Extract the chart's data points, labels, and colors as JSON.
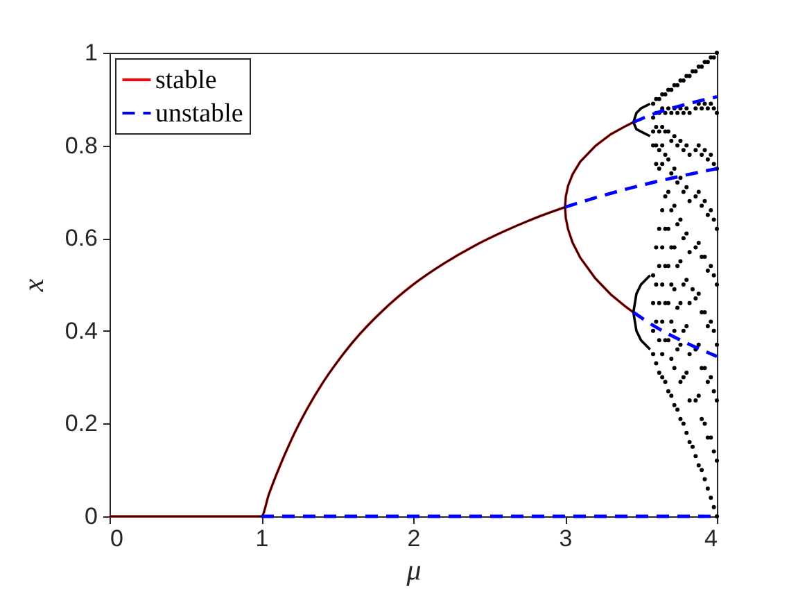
{
  "chart_data": {
    "type": "line",
    "xlabel": "μ",
    "ylabel": "x",
    "xlim": [
      0,
      4
    ],
    "ylim": [
      0,
      1
    ],
    "xticks": [
      0,
      1,
      2,
      3,
      4
    ],
    "yticks": [
      0,
      0.2,
      0.4,
      0.6,
      0.8,
      1
    ],
    "legend": "top left",
    "series": [
      {
        "name": "stable",
        "color": "#ff0000",
        "line_style": "solid",
        "x": [
          0,
          1,
          1.05,
          1.1,
          1.2,
          1.3,
          1.4,
          1.5,
          1.6,
          1.8,
          2,
          2.2,
          2.4,
          2.6,
          2.8,
          3
        ],
        "values": [
          0,
          0,
          0.048,
          0.091,
          0.167,
          0.231,
          0.286,
          0.333,
          0.375,
          0.444,
          0.5,
          0.545,
          0.583,
          0.615,
          0.643,
          0.667
        ]
      },
      {
        "color": "#ff0000",
        "line_style": "solid",
        "x": [
          3.45,
          3.4,
          3.3,
          3.2,
          3.1,
          3.05,
          3.02,
          3.005,
          3,
          3.005,
          3.02,
          3.05,
          3.1,
          3.2,
          3.3,
          3.4,
          3.45
        ],
        "values": [
          0.85,
          0.842,
          0.824,
          0.799,
          0.765,
          0.738,
          0.713,
          0.69,
          0.667,
          0.643,
          0.619,
          0.59,
          0.558,
          0.513,
          0.479,
          0.452,
          0.44
        ]
      },
      {
        "color": "#000000",
        "line_style": "solid",
        "x": [
          0,
          1,
          1.05,
          1.1,
          1.2,
          1.3,
          1.4,
          1.5,
          1.6,
          1.8,
          2,
          2.2,
          2.4,
          2.6,
          2.8,
          3
        ],
        "values": [
          0,
          0,
          0.048,
          0.091,
          0.167,
          0.231,
          0.286,
          0.333,
          0.375,
          0.444,
          0.5,
          0.545,
          0.583,
          0.615,
          0.643,
          0.667
        ]
      },
      {
        "color": "#000000",
        "line_style": "solid",
        "x": [
          3.45,
          3.4,
          3.3,
          3.2,
          3.1,
          3.05,
          3.02,
          3.005,
          3,
          3.005,
          3.02,
          3.05,
          3.1,
          3.2,
          3.3,
          3.4,
          3.45
        ],
        "values": [
          0.85,
          0.842,
          0.824,
          0.799,
          0.765,
          0.738,
          0.713,
          0.69,
          0.667,
          0.643,
          0.619,
          0.59,
          0.558,
          0.513,
          0.479,
          0.452,
          0.44
        ]
      },
      {
        "color": "#000000",
        "line_style": "solid",
        "x": [
          3.56,
          3.5,
          3.47,
          3.45,
          3.47,
          3.5,
          3.56
        ],
        "values": [
          0.89,
          0.88,
          0.87,
          0.85,
          0.835,
          0.83,
          0.82
        ]
      },
      {
        "color": "#000000",
        "line_style": "solid",
        "x": [
          3.56,
          3.5,
          3.47,
          3.45,
          3.47,
          3.5,
          3.56
        ],
        "values": [
          0.52,
          0.5,
          0.48,
          0.44,
          0.4,
          0.38,
          0.36
        ]
      },
      {
        "type": "scatter",
        "color": "#000000",
        "marker": "circle",
        "x": [
          3.58,
          3.58,
          3.58,
          3.58,
          3.58,
          3.58,
          3.58,
          3.58,
          3.6,
          3.6,
          3.6,
          3.6,
          3.6,
          3.6,
          3.6,
          3.6,
          3.6,
          3.62,
          3.62,
          3.62,
          3.62,
          3.62,
          3.62,
          3.62,
          3.62,
          3.62,
          3.62,
          3.64,
          3.64,
          3.64,
          3.64,
          3.64,
          3.64,
          3.64,
          3.64,
          3.64,
          3.64,
          3.64,
          3.66,
          3.66,
          3.66,
          3.66,
          3.66,
          3.66,
          3.66,
          3.66,
          3.66,
          3.66,
          3.68,
          3.68,
          3.68,
          3.68,
          3.68,
          3.68,
          3.68,
          3.68,
          3.68,
          3.68,
          3.7,
          3.7,
          3.7,
          3.7,
          3.7,
          3.7,
          3.7,
          3.7,
          3.7,
          3.7,
          3.72,
          3.72,
          3.72,
          3.72,
          3.72,
          3.72,
          3.72,
          3.72,
          3.72,
          3.72,
          3.74,
          3.74,
          3.74,
          3.74,
          3.74,
          3.74,
          3.74,
          3.74,
          3.74,
          3.76,
          3.76,
          3.76,
          3.76,
          3.76,
          3.76,
          3.76,
          3.76,
          3.76,
          3.76
        ],
        "values": [
          0.89,
          0.86,
          0.83,
          0.8,
          0.52,
          0.46,
          0.4,
          0.35,
          0.9,
          0.87,
          0.84,
          0.8,
          0.76,
          0.58,
          0.5,
          0.42,
          0.33,
          0.9,
          0.87,
          0.83,
          0.79,
          0.75,
          0.62,
          0.54,
          0.46,
          0.38,
          0.31,
          0.91,
          0.88,
          0.84,
          0.8,
          0.76,
          0.66,
          0.58,
          0.5,
          0.42,
          0.35,
          0.3,
          0.91,
          0.87,
          0.83,
          0.78,
          0.69,
          0.62,
          0.54,
          0.46,
          0.38,
          0.29,
          0.92,
          0.88,
          0.83,
          0.77,
          0.7,
          0.62,
          0.54,
          0.46,
          0.38,
          0.27,
          0.92,
          0.87,
          0.81,
          0.74,
          0.66,
          0.58,
          0.5,
          0.42,
          0.34,
          0.26,
          0.93,
          0.88,
          0.82,
          0.75,
          0.67,
          0.58,
          0.49,
          0.4,
          0.32,
          0.24,
          0.93,
          0.87,
          0.8,
          0.72,
          0.63,
          0.54,
          0.45,
          0.36,
          0.23,
          0.94,
          0.88,
          0.81,
          0.73,
          0.64,
          0.55,
          0.46,
          0.37,
          0.29,
          0.21
        ]
      },
      {
        "type": "scatter",
        "color": "#000000",
        "marker": "circle",
        "x": [
          3.78,
          3.78,
          3.78,
          3.78,
          3.78,
          3.78,
          3.78,
          3.78,
          3.78,
          3.8,
          3.8,
          3.8,
          3.8,
          3.8,
          3.8,
          3.8,
          3.8,
          3.8,
          3.82,
          3.82,
          3.82,
          3.82,
          3.82,
          3.82,
          3.82,
          3.82,
          3.82,
          3.84,
          3.84,
          3.84,
          3.86,
          3.86,
          3.86,
          3.86,
          3.86,
          3.86,
          3.86,
          3.86,
          3.86,
          3.88,
          3.88,
          3.88,
          3.88,
          3.88,
          3.88,
          3.88,
          3.88,
          3.88,
          3.9,
          3.9,
          3.9,
          3.9,
          3.9,
          3.9,
          3.9,
          3.9,
          3.9,
          3.92,
          3.92,
          3.92,
          3.92,
          3.92,
          3.92,
          3.92,
          3.92,
          3.92,
          3.94,
          3.94,
          3.94,
          3.94,
          3.94,
          3.94,
          3.94,
          3.94,
          3.94,
          3.96,
          3.96,
          3.96,
          3.96,
          3.96,
          3.96,
          3.96,
          3.96,
          3.96,
          3.98,
          3.98,
          3.98,
          3.98,
          3.98,
          3.98,
          3.98,
          3.98,
          3.98,
          4,
          4,
          4,
          4,
          4,
          4,
          4,
          4,
          4
        ],
        "values": [
          0.94,
          0.87,
          0.79,
          0.7,
          0.6,
          0.5,
          0.4,
          0.3,
          0.2,
          0.95,
          0.88,
          0.8,
          0.71,
          0.61,
          0.51,
          0.41,
          0.31,
          0.18,
          0.95,
          0.87,
          0.78,
          0.68,
          0.57,
          0.46,
          0.35,
          0.25,
          0.16,
          0.96,
          0.49,
          0.15,
          0.96,
          0.88,
          0.79,
          0.69,
          0.58,
          0.47,
          0.36,
          0.25,
          0.13,
          0.97,
          0.89,
          0.8,
          0.7,
          0.59,
          0.48,
          0.37,
          0.26,
          0.11,
          0.97,
          0.88,
          0.78,
          0.67,
          0.56,
          0.44,
          0.32,
          0.21,
          0.1,
          0.98,
          0.89,
          0.79,
          0.68,
          0.56,
          0.44,
          0.32,
          0.2,
          0.08,
          0.98,
          0.88,
          0.77,
          0.65,
          0.53,
          0.41,
          0.29,
          0.17,
          0.06,
          0.99,
          0.89,
          0.78,
          0.66,
          0.54,
          0.42,
          0.3,
          0.17,
          0.04,
          0.99,
          0.88,
          0.76,
          0.64,
          0.52,
          0.4,
          0.27,
          0.14,
          0.02,
          1,
          0.87,
          0.75,
          0.62,
          0.5,
          0.37,
          0.25,
          0.12,
          0
        ]
      },
      {
        "name": "unstable",
        "color": "#0000ff",
        "line_style": "dashed",
        "x": [
          1,
          4
        ],
        "values": [
          0,
          0
        ]
      },
      {
        "color": "#0000ff",
        "line_style": "dashed",
        "x": [
          3,
          3.25,
          3.5,
          3.75,
          4
        ],
        "values": [
          0.667,
          0.692,
          0.714,
          0.733,
          0.75
        ]
      },
      {
        "color": "#0000ff",
        "line_style": "dashed",
        "x": [
          3.45,
          3.6,
          3.8,
          4
        ],
        "values": [
          0.85,
          0.87,
          0.889,
          0.905
        ]
      },
      {
        "color": "#0000ff",
        "line_style": "dashed",
        "x": [
          3.45,
          3.6,
          3.8,
          4
        ],
        "values": [
          0.44,
          0.408,
          0.374,
          0.345
        ]
      }
    ]
  }
}
